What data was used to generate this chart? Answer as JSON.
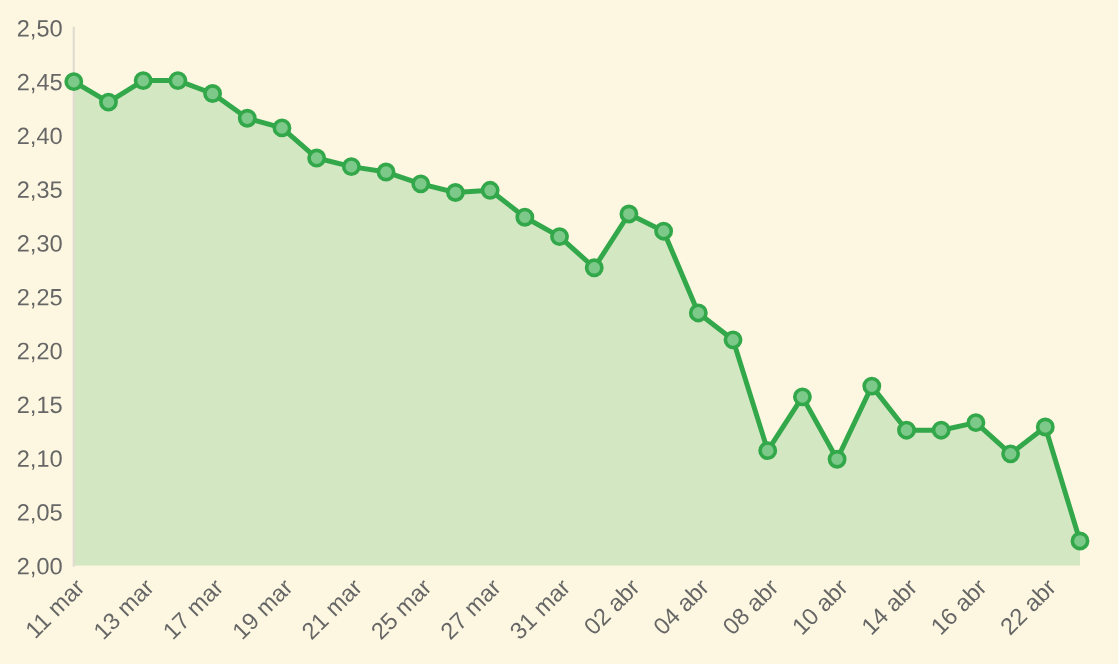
{
  "chart_data": {
    "type": "area",
    "categories": [
      "11 mar",
      null,
      "13 mar",
      null,
      "17 mar",
      null,
      "19 mar",
      null,
      "21 mar",
      null,
      "25 mar",
      null,
      "27 mar",
      null,
      "31 mar",
      null,
      "02 abr",
      null,
      "04 abr",
      null,
      "08 abr",
      null,
      "10 abr",
      null,
      "14 abr",
      null,
      "16 abr",
      null,
      "22 abr",
      null
    ],
    "series": [
      {
        "color": "#33a84a",
        "values": [
          2.45,
          2.431,
          2.451,
          2.451,
          2.439,
          2.416,
          2.407,
          2.379,
          2.371,
          2.366,
          2.355,
          2.347,
          2.349,
          2.324,
          2.306,
          2.277,
          2.327,
          2.311,
          2.235,
          2.21,
          2.107,
          2.157,
          2.099,
          2.167,
          2.126,
          2.126,
          2.133,
          2.104,
          2.129,
          2.023
        ]
      }
    ],
    "ylim": [
      2.0,
      2.5
    ],
    "yticks": [
      {
        "value": 2.0,
        "label": "2,00"
      },
      {
        "value": 2.05,
        "label": "2,05"
      },
      {
        "value": 2.1,
        "label": "2,10"
      },
      {
        "value": 2.15,
        "label": "2,15"
      },
      {
        "value": 2.2,
        "label": "2,20"
      },
      {
        "value": 2.25,
        "label": "2,25"
      },
      {
        "value": 2.3,
        "label": "2,30"
      },
      {
        "value": 2.35,
        "label": "2,35"
      },
      {
        "value": 2.4,
        "label": "2,40"
      },
      {
        "value": 2.45,
        "label": "2,45"
      },
      {
        "value": 2.5,
        "label": "2,50"
      }
    ],
    "marker": "circle",
    "line_style": "solid",
    "grid": false
  }
}
